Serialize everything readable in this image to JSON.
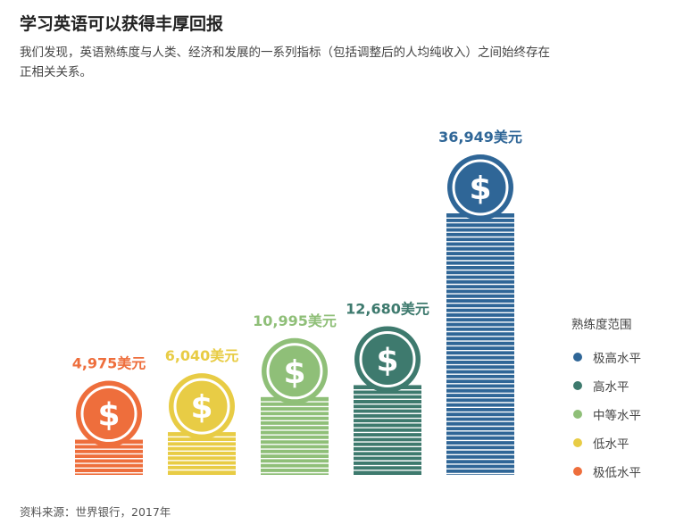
{
  "title": "学习英语可以获得丰厚回报",
  "subtitle": "我们发现，英语熟练度与人类、经济和发展的一系列指标（包括调整后的人均纯收入）之间始终存在正相关关系。",
  "source": "资料来源：世界银行，2017年",
  "coin_symbol": "$",
  "chart_data": {
    "type": "bar",
    "categories": [
      "极低水平",
      "低水平",
      "中等水平",
      "高水平",
      "极高水平"
    ],
    "values": [
      4975,
      6040,
      10995,
      12680,
      36949
    ],
    "value_labels": [
      "4,975美元",
      "6,040美元",
      "10,995美元",
      "12,680美元",
      "36,949美元"
    ],
    "colors": [
      "#ee6e3c",
      "#e8cc45",
      "#8fbf78",
      "#3e7a6e",
      "#2f6697"
    ],
    "legend_title": "熟练度范围",
    "legend": [
      {
        "label": "极高水平",
        "color": "#2f6697"
      },
      {
        "label": "高水平",
        "color": "#3e7a6e"
      },
      {
        "label": "中等水平",
        "color": "#8fbf78"
      },
      {
        "label": "低水平",
        "color": "#e8cc45"
      },
      {
        "label": "极低水平",
        "color": "#ee6e3c"
      }
    ],
    "legend_position": "right"
  }
}
